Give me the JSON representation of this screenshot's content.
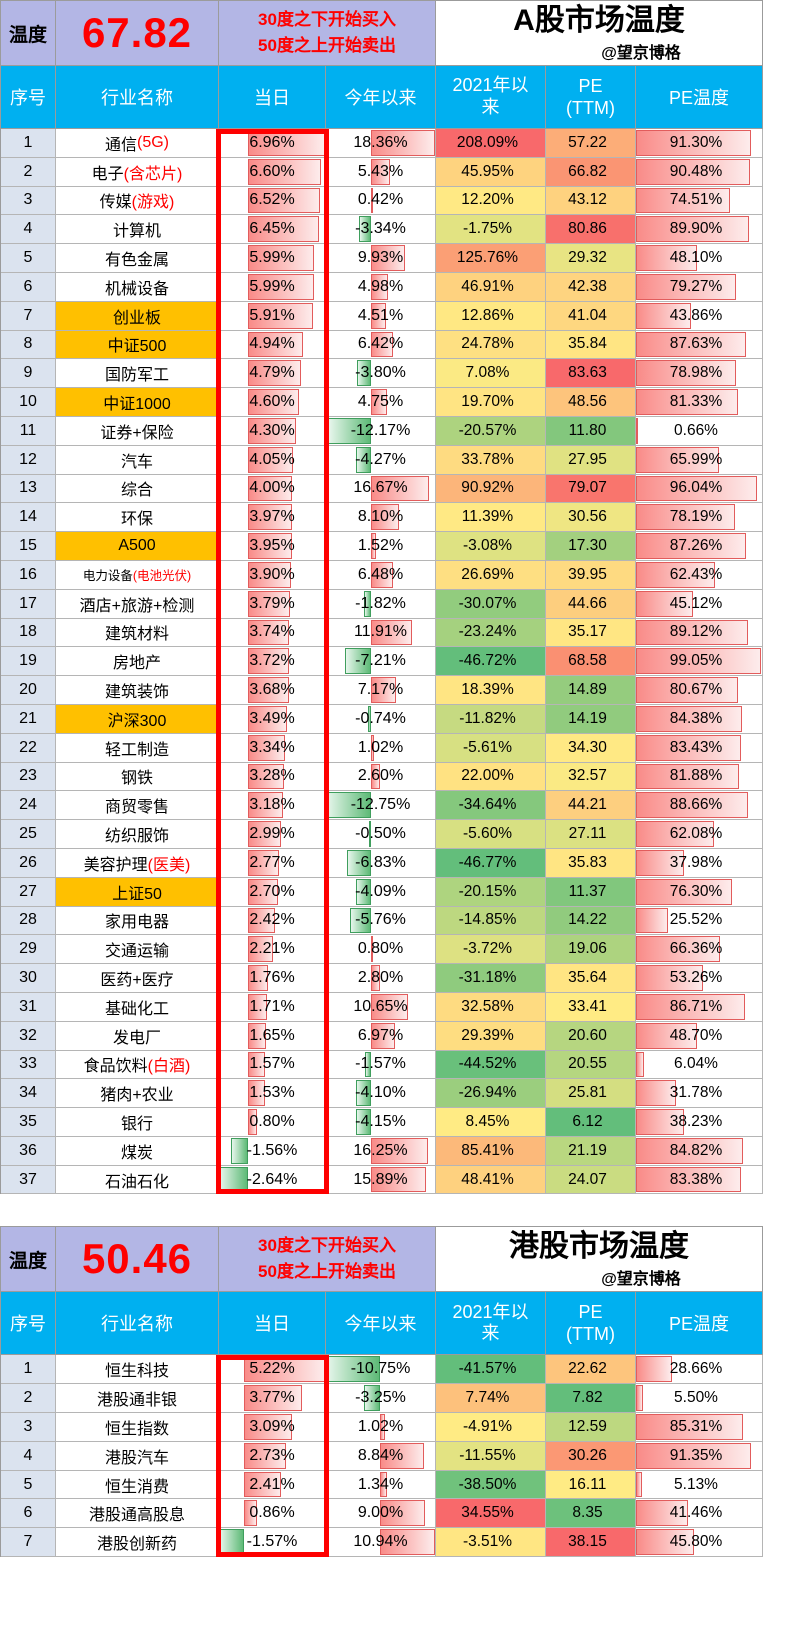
{
  "colors": {
    "band_bg": "#b3b6e5",
    "header_bg": "#00b0f0",
    "index_col_bg": "#dbe3ef",
    "highlight_bg": "#ffc000",
    "red": "#ff0000",
    "scale_low": "#63be7b",
    "scale_mid": "#ffeb84",
    "scale_high": "#f8696b",
    "bar_positive": "#f98b88",
    "bar_negative": "#5eba77"
  },
  "tables": [
    {
      "temp_label": "温度",
      "temperature": "67.82",
      "note_line1": "30度之下开始买入",
      "note_line2": "50度之上开始卖出",
      "title": "A股市场温度",
      "handle": "@望京博格",
      "columns": {
        "index": "序号",
        "name": "行业名称",
        "today": "当日",
        "ytd": "今年以来",
        "since_2021": "2021年以来",
        "pe": "PE\n(TTM)",
        "pe_temp": "PE温度"
      },
      "rows": [
        {
          "no": 1,
          "name": "通信",
          "name_red": "(5G)",
          "today": 6.96,
          "ytd": 18.36,
          "since_2021": 208.09,
          "pe": 57.22,
          "pe_temp": 91.3,
          "highlight": false
        },
        {
          "no": 2,
          "name": "电子",
          "name_red": "(含芯片)",
          "today": 6.6,
          "ytd": 5.43,
          "since_2021": 45.95,
          "pe": 66.82,
          "pe_temp": 90.48,
          "highlight": false
        },
        {
          "no": 3,
          "name": "传媒",
          "name_red": "(游戏)",
          "today": 6.52,
          "ytd": 0.42,
          "since_2021": 12.2,
          "pe": 43.12,
          "pe_temp": 74.51,
          "highlight": false
        },
        {
          "no": 4,
          "name": "计算机",
          "name_red": "",
          "today": 6.45,
          "ytd": -3.34,
          "since_2021": -1.75,
          "pe": 80.86,
          "pe_temp": 89.9,
          "highlight": false
        },
        {
          "no": 5,
          "name": "有色金属",
          "name_red": "",
          "today": 5.99,
          "ytd": 9.93,
          "since_2021": 125.76,
          "pe": 29.32,
          "pe_temp": 48.1,
          "highlight": false
        },
        {
          "no": 6,
          "name": "机械设备",
          "name_red": "",
          "today": 5.99,
          "ytd": 4.98,
          "since_2021": 46.91,
          "pe": 42.38,
          "pe_temp": 79.27,
          "highlight": false
        },
        {
          "no": 7,
          "name": "创业板",
          "name_red": "",
          "today": 5.91,
          "ytd": 4.51,
          "since_2021": 12.86,
          "pe": 41.04,
          "pe_temp": 43.86,
          "highlight": true
        },
        {
          "no": 8,
          "name": "中证500",
          "name_red": "",
          "today": 4.94,
          "ytd": 6.42,
          "since_2021": 24.78,
          "pe": 35.84,
          "pe_temp": 87.63,
          "highlight": true
        },
        {
          "no": 9,
          "name": "国防军工",
          "name_red": "",
          "today": 4.79,
          "ytd": -3.8,
          "since_2021": 7.08,
          "pe": 83.63,
          "pe_temp": 78.98,
          "highlight": false
        },
        {
          "no": 10,
          "name": "中证1000",
          "name_red": "",
          "today": 4.6,
          "ytd": 4.75,
          "since_2021": 19.7,
          "pe": 48.56,
          "pe_temp": 81.33,
          "highlight": true
        },
        {
          "no": 11,
          "name": "证券+保险",
          "name_red": "",
          "today": 4.3,
          "ytd": -12.17,
          "since_2021": -20.57,
          "pe": 11.8,
          "pe_temp": 0.66,
          "highlight": false
        },
        {
          "no": 12,
          "name": "汽车",
          "name_red": "",
          "today": 4.05,
          "ytd": -4.27,
          "since_2021": 33.78,
          "pe": 27.95,
          "pe_temp": 65.99,
          "highlight": false
        },
        {
          "no": 13,
          "name": "综合",
          "name_red": "",
          "today": 4.0,
          "ytd": 16.67,
          "since_2021": 90.92,
          "pe": 79.07,
          "pe_temp": 96.04,
          "highlight": false
        },
        {
          "no": 14,
          "name": "环保",
          "name_red": "",
          "today": 3.97,
          "ytd": 8.1,
          "since_2021": 11.39,
          "pe": 30.56,
          "pe_temp": 78.19,
          "highlight": false
        },
        {
          "no": 15,
          "name": "A500",
          "name_red": "",
          "today": 3.95,
          "ytd": 1.52,
          "since_2021": -3.08,
          "pe": 17.3,
          "pe_temp": 87.26,
          "highlight": true
        },
        {
          "no": 16,
          "name": "电力设备",
          "name_red": "(电池光伏)",
          "today": 3.9,
          "ytd": 6.48,
          "since_2021": 26.69,
          "pe": 39.95,
          "pe_temp": 62.43,
          "highlight": false
        },
        {
          "no": 17,
          "name": "酒店+旅游+检测",
          "name_red": "",
          "today": 3.79,
          "ytd": -1.82,
          "since_2021": -30.07,
          "pe": 44.66,
          "pe_temp": 45.12,
          "highlight": false
        },
        {
          "no": 18,
          "name": "建筑材料",
          "name_red": "",
          "today": 3.74,
          "ytd": 11.91,
          "since_2021": -23.24,
          "pe": 35.17,
          "pe_temp": 89.12,
          "highlight": false
        },
        {
          "no": 19,
          "name": "房地产",
          "name_red": "",
          "today": 3.72,
          "ytd": -7.21,
          "since_2021": -46.72,
          "pe": 68.58,
          "pe_temp": 99.05,
          "highlight": false
        },
        {
          "no": 20,
          "name": "建筑装饰",
          "name_red": "",
          "today": 3.68,
          "ytd": 7.17,
          "since_2021": 18.39,
          "pe": 14.89,
          "pe_temp": 80.67,
          "highlight": false
        },
        {
          "no": 21,
          "name": "沪深300",
          "name_red": "",
          "today": 3.49,
          "ytd": -0.74,
          "since_2021": -11.82,
          "pe": 14.19,
          "pe_temp": 84.38,
          "highlight": true
        },
        {
          "no": 22,
          "name": "轻工制造",
          "name_red": "",
          "today": 3.34,
          "ytd": 1.02,
          "since_2021": -5.61,
          "pe": 34.3,
          "pe_temp": 83.43,
          "highlight": false
        },
        {
          "no": 23,
          "name": "钢铁",
          "name_red": "",
          "today": 3.28,
          "ytd": 2.6,
          "since_2021": 22.0,
          "pe": 32.57,
          "pe_temp": 81.88,
          "highlight": false
        },
        {
          "no": 24,
          "name": "商贸零售",
          "name_red": "",
          "today": 3.18,
          "ytd": -12.75,
          "since_2021": -34.64,
          "pe": 44.21,
          "pe_temp": 88.66,
          "highlight": false
        },
        {
          "no": 25,
          "name": "纺织服饰",
          "name_red": "",
          "today": 2.99,
          "ytd": -0.5,
          "since_2021": -5.6,
          "pe": 27.11,
          "pe_temp": 62.08,
          "highlight": false
        },
        {
          "no": 26,
          "name": "美容护理",
          "name_red": "(医美)",
          "today": 2.77,
          "ytd": -6.83,
          "since_2021": -46.77,
          "pe": 35.83,
          "pe_temp": 37.98,
          "highlight": false
        },
        {
          "no": 27,
          "name": "上证50",
          "name_red": "",
          "today": 2.7,
          "ytd": -4.09,
          "since_2021": -20.15,
          "pe": 11.37,
          "pe_temp": 76.3,
          "highlight": true
        },
        {
          "no": 28,
          "name": "家用电器",
          "name_red": "",
          "today": 2.42,
          "ytd": -5.76,
          "since_2021": -14.85,
          "pe": 14.22,
          "pe_temp": 25.52,
          "highlight": false
        },
        {
          "no": 29,
          "name": "交通运输",
          "name_red": "",
          "today": 2.21,
          "ytd": 0.8,
          "since_2021": -3.72,
          "pe": 19.06,
          "pe_temp": 66.36,
          "highlight": false
        },
        {
          "no": 30,
          "name": "医药+医疗",
          "name_red": "",
          "today": 1.76,
          "ytd": 2.8,
          "since_2021": -31.18,
          "pe": 35.64,
          "pe_temp": 53.26,
          "highlight": false
        },
        {
          "no": 31,
          "name": "基础化工",
          "name_red": "",
          "today": 1.71,
          "ytd": 10.65,
          "since_2021": 32.58,
          "pe": 33.41,
          "pe_temp": 86.71,
          "highlight": false
        },
        {
          "no": 32,
          "name": "发电厂",
          "name_red": "",
          "today": 1.65,
          "ytd": 6.97,
          "since_2021": 29.39,
          "pe": 20.6,
          "pe_temp": 48.7,
          "highlight": false
        },
        {
          "no": 33,
          "name": "食品饮料",
          "name_red": "(白酒)",
          "today": 1.57,
          "ytd": -1.57,
          "since_2021": -44.52,
          "pe": 20.55,
          "pe_temp": 6.04,
          "highlight": false
        },
        {
          "no": 34,
          "name": "猪肉+农业",
          "name_red": "",
          "today": 1.53,
          "ytd": -4.1,
          "since_2021": -26.94,
          "pe": 25.81,
          "pe_temp": 31.78,
          "highlight": false
        },
        {
          "no": 35,
          "name": "银行",
          "name_red": "",
          "today": 0.8,
          "ytd": -4.15,
          "since_2021": 8.45,
          "pe": 6.12,
          "pe_temp": 38.23,
          "highlight": false
        },
        {
          "no": 36,
          "name": "煤炭",
          "name_red": "",
          "today": -1.56,
          "ytd": 16.25,
          "since_2021": 85.41,
          "pe": 21.19,
          "pe_temp": 84.82,
          "highlight": false
        },
        {
          "no": 37,
          "name": "石油石化",
          "name_red": "",
          "today": -2.64,
          "ytd": 15.89,
          "since_2021": 48.41,
          "pe": 24.07,
          "pe_temp": 83.38,
          "highlight": false
        }
      ]
    },
    {
      "temp_label": "温度",
      "temperature": "50.46",
      "note_line1": "30度之下开始买入",
      "note_line2": "50度之上开始卖出",
      "title": "港股市场温度",
      "handle": "@望京博格",
      "columns": {
        "index": "序号",
        "name": "行业名称",
        "today": "当日",
        "ytd": "今年以来",
        "since_2021": "2021年以来",
        "pe": "PE\n(TTM)",
        "pe_temp": "PE温度"
      },
      "rows": [
        {
          "no": 1,
          "name": "恒生科技",
          "name_red": "",
          "today": 5.22,
          "ytd": -10.75,
          "since_2021": -41.57,
          "pe": 22.62,
          "pe_temp": 28.66,
          "highlight": false
        },
        {
          "no": 2,
          "name": "港股通非银",
          "name_red": "",
          "today": 3.77,
          "ytd": -3.25,
          "since_2021": 7.74,
          "pe": 7.82,
          "pe_temp": 5.5,
          "highlight": false
        },
        {
          "no": 3,
          "name": "恒生指数",
          "name_red": "",
          "today": 3.09,
          "ytd": 1.02,
          "since_2021": -4.91,
          "pe": 12.59,
          "pe_temp": 85.31,
          "highlight": false
        },
        {
          "no": 4,
          "name": "港股汽车",
          "name_red": "",
          "today": 2.73,
          "ytd": 8.84,
          "since_2021": -11.55,
          "pe": 30.26,
          "pe_temp": 91.35,
          "highlight": false
        },
        {
          "no": 5,
          "name": "恒生消费",
          "name_red": "",
          "today": 2.41,
          "ytd": 1.34,
          "since_2021": -38.5,
          "pe": 16.11,
          "pe_temp": 5.13,
          "highlight": false
        },
        {
          "no": 6,
          "name": "港股通高股息",
          "name_red": "",
          "today": 0.86,
          "ytd": 9.0,
          "since_2021": 34.55,
          "pe": 8.35,
          "pe_temp": 41.46,
          "highlight": false
        },
        {
          "no": 7,
          "name": "港股创新药",
          "name_red": "",
          "today": -1.57,
          "ytd": 10.94,
          "since_2021": -3.51,
          "pe": 38.15,
          "pe_temp": 45.8,
          "highlight": false
        }
      ]
    }
  ]
}
